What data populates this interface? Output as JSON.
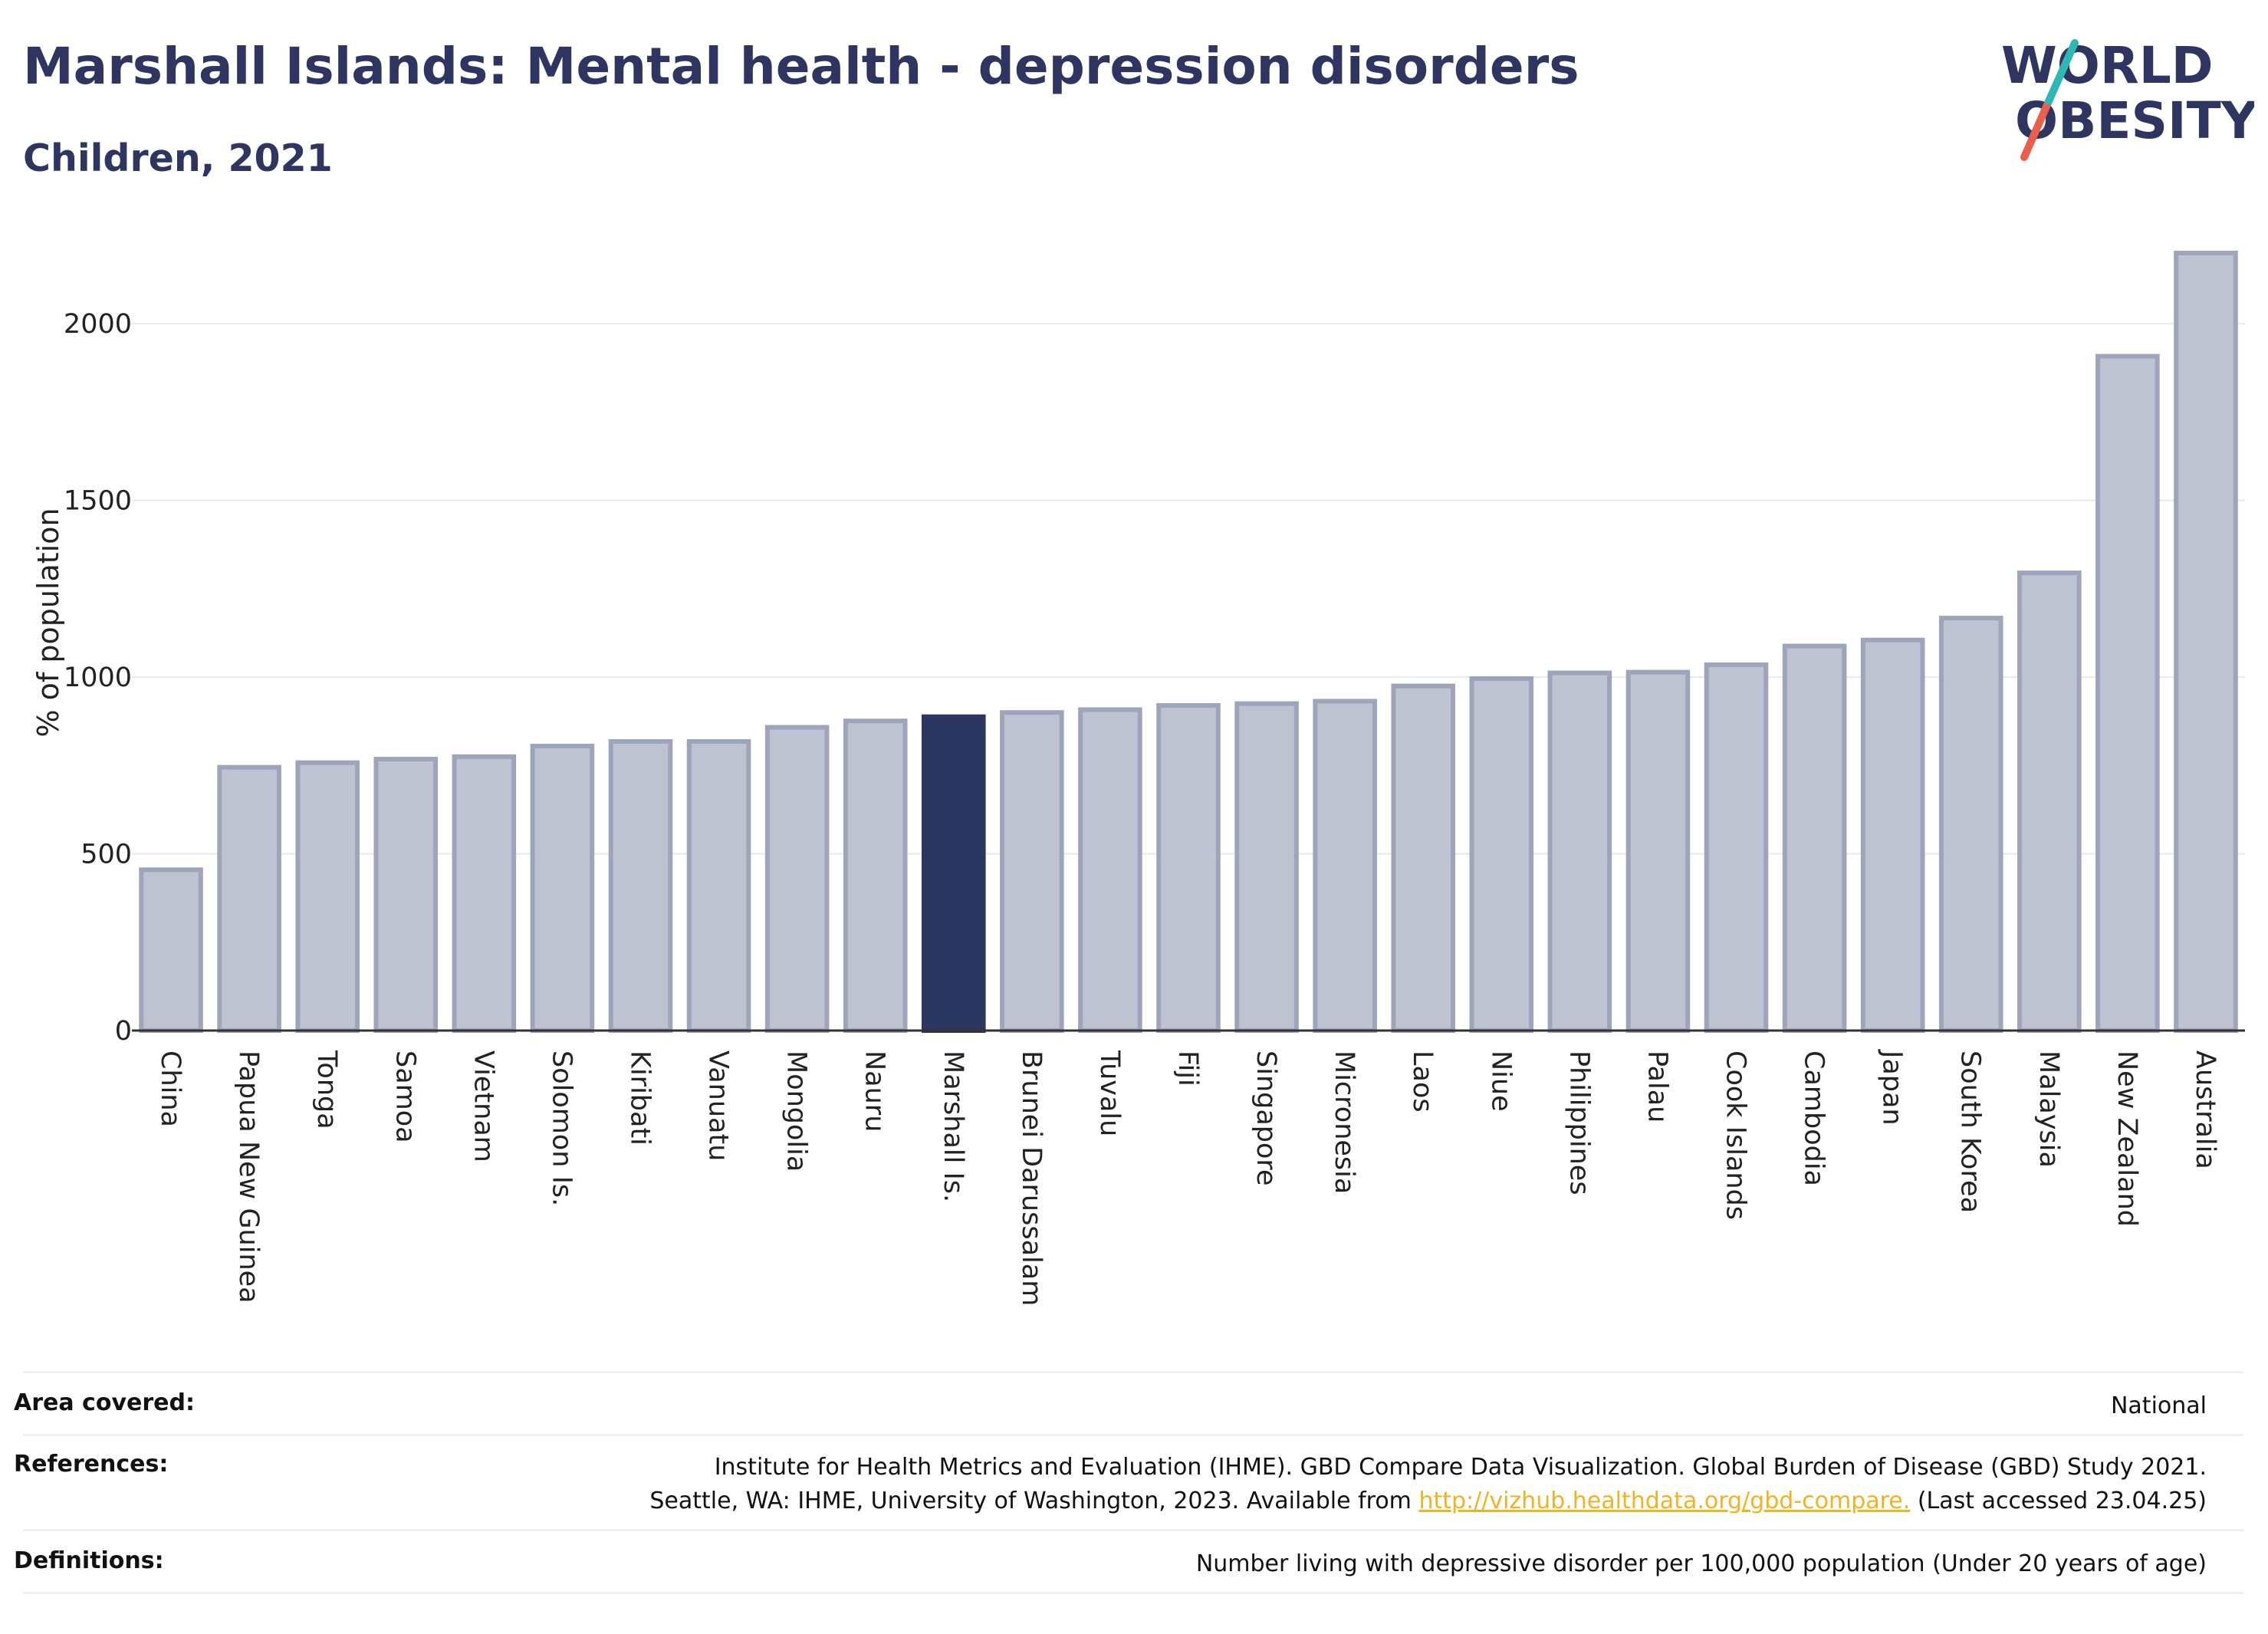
{
  "header": {
    "title": "Marshall Islands: Mental health - depression disorders",
    "subtitle": "Children, 2021"
  },
  "logo": {
    "line1": "WORLD",
    "line2": "OBESITY"
  },
  "colors": {
    "highlight": "#2b3660",
    "bar_fill": "#bfc3d1",
    "bar_stroke": "#9ea4bb",
    "grid": "#e6e8ee"
  },
  "chart_data": {
    "type": "bar",
    "ylabel": "% of population",
    "ylim": [
      0,
      2200
    ],
    "yticks": [
      0,
      500,
      1000,
      1500,
      2000
    ],
    "highlight": "Marshall Is.",
    "categories": [
      "China",
      "Papua New Guinea",
      "Tonga",
      "Samoa",
      "Vietnam",
      "Solomon Is.",
      "Kiribati",
      "Vanuatu",
      "Mongolia",
      "Nauru",
      "Marshall Is.",
      "Brunei Darussalam",
      "Tuvalu",
      "Fiji",
      "Singapore",
      "Micronesia",
      "Laos",
      "Niue",
      "Philippines",
      "Palau",
      "Cook Islands",
      "Cambodia",
      "Japan",
      "South Korea",
      "Malaysia",
      "New Zealand",
      "Australia"
    ],
    "values": [
      455,
      745,
      758,
      768,
      775,
      805,
      818,
      818,
      858,
      876,
      888,
      900,
      908,
      920,
      925,
      932,
      975,
      996,
      1012,
      1014,
      1035,
      1088,
      1105,
      1167,
      1295,
      1908,
      2200
    ]
  },
  "info": {
    "area_label": "Area covered:",
    "area_value": "National",
    "references_label": "References:",
    "references_line1": "Institute for Health Metrics and Evaluation (IHME). GBD Compare Data Visualization. Global Burden of Disease (GBD) Study 2021.",
    "references_line2_pre": "Seattle, WA: IHME, University of Washington, 2023. Available from ",
    "references_link": "http://vizhub.healthdata.org/gbd-compare.",
    "references_line2_post": " (Last accessed 23.04.25)",
    "definitions_label": "Definitions:",
    "definitions_value": "Number living with depressive disorder per 100,000 population (Under 20 years of age)"
  }
}
